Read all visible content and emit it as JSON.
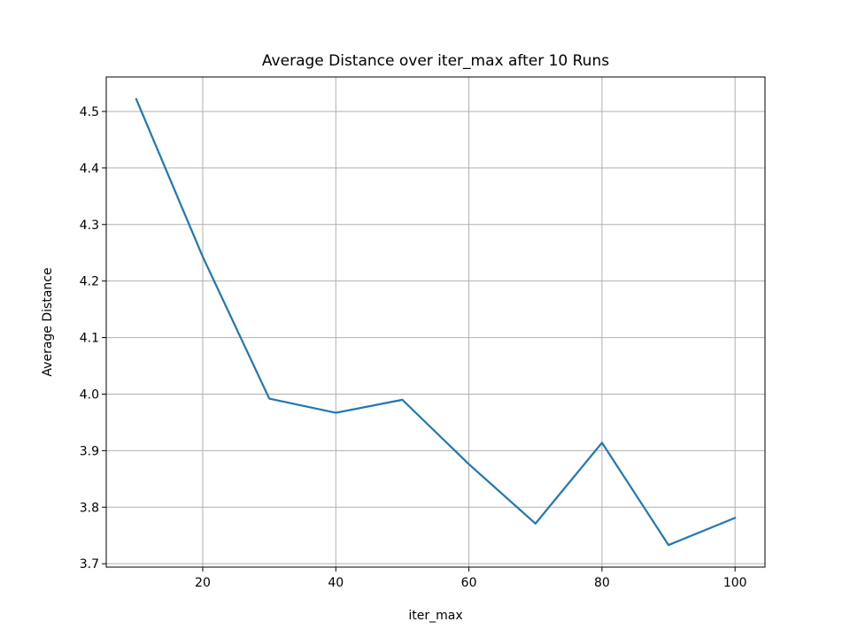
{
  "chart_data": {
    "type": "line",
    "title": "Average Distance over iter_max after 10 Runs",
    "xlabel": "iter_max",
    "ylabel": "Average Distance",
    "xlim": [
      5.5,
      104.5
    ],
    "ylim": [
      3.694,
      4.561
    ],
    "xticks": [
      20,
      40,
      60,
      80,
      100
    ],
    "yticks": [
      3.7,
      3.8,
      3.9,
      4.0,
      4.1,
      4.2,
      4.3,
      4.4,
      4.5
    ],
    "xtick_labels": [
      "20",
      "40",
      "60",
      "80",
      "100"
    ],
    "ytick_labels": [
      "3.7",
      "3.8",
      "3.9",
      "4.0",
      "4.1",
      "4.2",
      "4.3",
      "4.4",
      "4.5"
    ],
    "grid": true,
    "series": [
      {
        "color": "#1f77b4",
        "x": [
          10,
          20,
          30,
          40,
          50,
          60,
          70,
          80,
          90,
          100
        ],
        "y": [
          4.522,
          4.243,
          3.992,
          3.967,
          3.99,
          3.876,
          3.771,
          3.914,
          3.733,
          3.781
        ]
      }
    ]
  },
  "colors": {
    "line": "#1f77b4",
    "grid": "#b0b0b0",
    "axes": "#000000",
    "background": "#ffffff"
  }
}
